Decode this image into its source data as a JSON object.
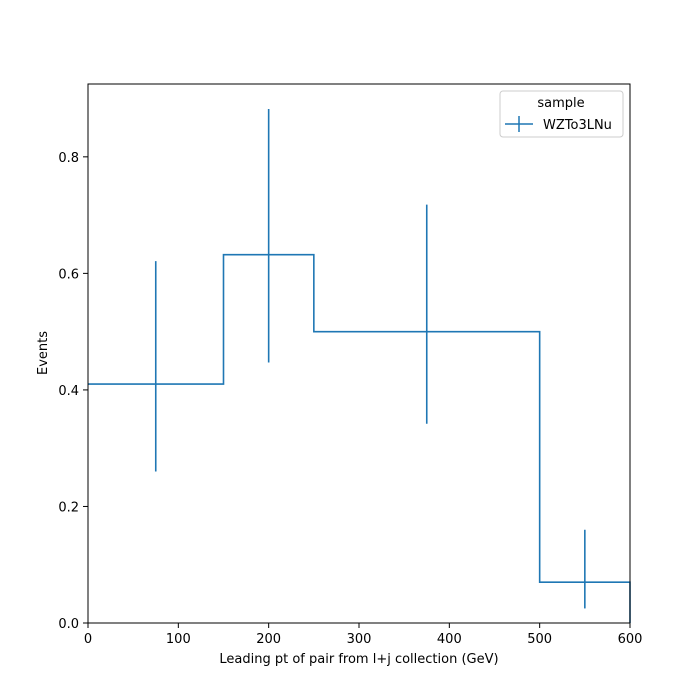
{
  "chart_data": {
    "type": "step",
    "xlabel": "Leading pt of pair from l+j collection (GeV)",
    "ylabel": "Events",
    "xlim": [
      0,
      600
    ],
    "ylim": [
      0,
      0.925
    ],
    "x_ticks": [
      0,
      100,
      200,
      300,
      400,
      500,
      600
    ],
    "y_ticks": [
      0.0,
      0.2,
      0.4,
      0.6,
      0.8
    ],
    "x_tick_labels": [
      "0",
      "100",
      "200",
      "300",
      "400",
      "500",
      "600"
    ],
    "y_tick_labels": [
      "0.0",
      "0.2",
      "0.4",
      "0.6",
      "0.8"
    ],
    "grid": false,
    "legend": {
      "title": "sample",
      "placement": "top-right"
    },
    "color": "#1f77b4",
    "series": [
      {
        "name": "WZTo3LNu",
        "bin_edges": [
          0,
          150,
          250,
          500,
          600
        ],
        "values": [
          0.41,
          0.632,
          0.5,
          0.07
        ],
        "err_low": [
          0.26,
          0.447,
          0.342,
          0.025
        ],
        "err_high": [
          0.621,
          0.882,
          0.718,
          0.16
        ],
        "bin_centers": [
          75,
          200,
          375,
          550
        ]
      }
    ]
  }
}
